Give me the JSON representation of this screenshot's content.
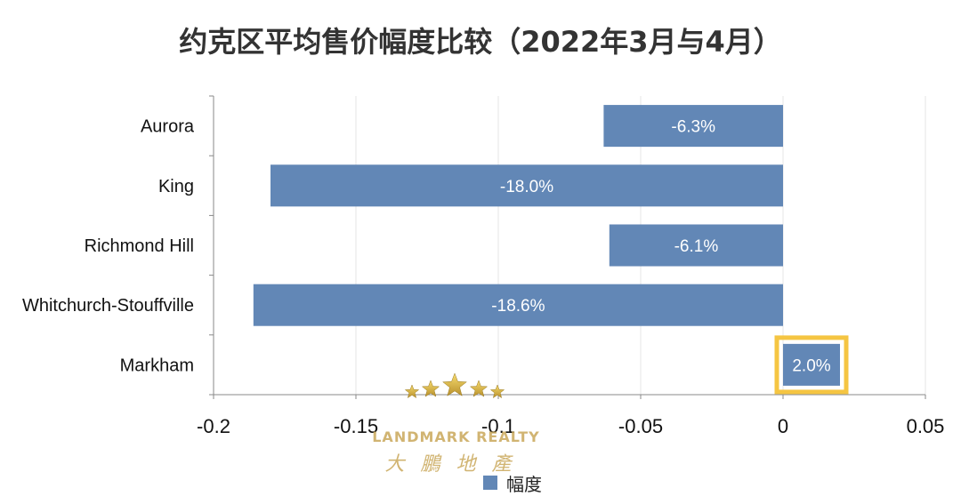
{
  "chart_data": {
    "type": "bar",
    "orientation": "horizontal",
    "title": "约克区平均售价幅度比较（2022年3月与4月）",
    "categories": [
      "Aurora",
      "King",
      "Richmond Hill",
      "Whitchurch-Stouffville",
      "Markham"
    ],
    "series": [
      {
        "name": "幅度",
        "values": [
          -0.063,
          -0.18,
          -0.061,
          -0.186,
          0.02
        ],
        "data_labels": [
          "-6.3%",
          "-18.0%",
          "-6.1%",
          "-18.6%",
          "2.0%"
        ]
      }
    ],
    "xlim": [
      -0.2,
      0.05
    ],
    "x_ticks": [
      -0.2,
      -0.15,
      -0.1,
      -0.05,
      0,
      0.05
    ],
    "x_tick_labels": [
      "-0.2",
      "-0.15",
      "-0.1",
      "-0.05",
      "0",
      "0.05"
    ],
    "grid": true,
    "legend": "bottom",
    "highlighted_category": "Markham",
    "colors": {
      "bar": "#6287b6",
      "highlight": "#f5c542",
      "grid": "#e4e4e4",
      "axis": "#888888"
    }
  },
  "watermark": {
    "text_en": "LANDMARK REALTY",
    "text_zh": "大鵬地產",
    "color": "#c9a85a"
  }
}
